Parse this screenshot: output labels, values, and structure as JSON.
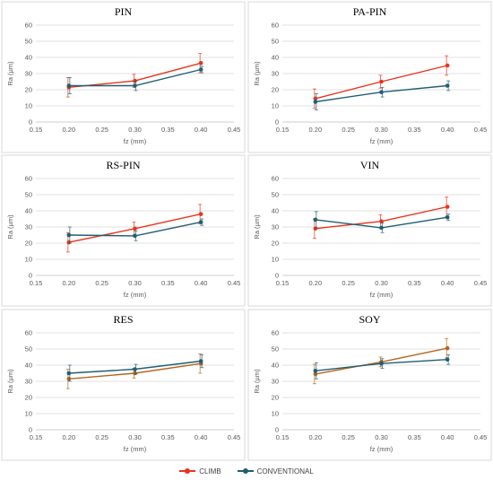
{
  "legend": {
    "climb_label": "CLIMB",
    "conventional_label": "CONVENTIONAL"
  },
  "colors": {
    "climb": "#e8341c",
    "conventional": "#1f5f73",
    "climb_res_soy": "#b5651d"
  },
  "chart_data": [
    {
      "type": "line",
      "title": "PIN",
      "xlabel": "fz (mm)",
      "ylabel": "Ra (µm)",
      "xlim": [
        0.15,
        0.45
      ],
      "ylim": [
        0,
        60
      ],
      "x_ticks": [
        "0.15",
        "0.20",
        "0.25",
        "0.30",
        "0.35",
        "0.40",
        "0.45"
      ],
      "y_ticks": [
        "0",
        "10",
        "20",
        "30",
        "40",
        "50",
        "60"
      ],
      "grid": true,
      "series": [
        {
          "name": "CLIMB",
          "x": [
            0.2,
            0.3,
            0.4
          ],
          "y": [
            21.5,
            25.5,
            36.5
          ],
          "err": [
            6,
            4,
            6
          ]
        },
        {
          "name": "CONVENTIONAL",
          "x": [
            0.2,
            0.3,
            0.4
          ],
          "y": [
            22.5,
            22.5,
            32.5
          ],
          "err": [
            5,
            3,
            2
          ]
        }
      ]
    },
    {
      "type": "line",
      "title": "PA-PIN",
      "xlabel": "fz (mm)",
      "ylabel": "Ra (µm)",
      "xlim": [
        0.15,
        0.45
      ],
      "ylim": [
        0,
        60
      ],
      "x_ticks": [
        "0.15",
        "0.20",
        "0.25",
        "0.30",
        "0.35",
        "0.40",
        "0.45"
      ],
      "y_ticks": [
        "0",
        "10",
        "20",
        "30",
        "40",
        "50",
        "60"
      ],
      "grid": true,
      "series": [
        {
          "name": "CLIMB",
          "x": [
            0.2,
            0.3,
            0.4
          ],
          "y": [
            14.5,
            25,
            35
          ],
          "err": [
            6,
            4,
            6
          ]
        },
        {
          "name": "CONVENTIONAL",
          "x": [
            0.2,
            0.3,
            0.4
          ],
          "y": [
            12.5,
            18.5,
            22.5
          ],
          "err": [
            5,
            3,
            3
          ]
        }
      ]
    },
    {
      "type": "line",
      "title": "RS-PIN",
      "xlabel": "fz (mm)",
      "ylabel": "Ra (µm)",
      "xlim": [
        0.15,
        0.45
      ],
      "ylim": [
        0,
        60
      ],
      "x_ticks": [
        "0.15",
        "0.20",
        "0.25",
        "0.30",
        "0.35",
        "0.40",
        "0.45"
      ],
      "y_ticks": [
        "0",
        "10",
        "20",
        "30",
        "40",
        "50",
        "60"
      ],
      "grid": true,
      "series": [
        {
          "name": "CLIMB",
          "x": [
            0.2,
            0.3,
            0.4
          ],
          "y": [
            20.5,
            29,
            38
          ],
          "err": [
            6,
            4,
            6
          ]
        },
        {
          "name": "CONVENTIONAL",
          "x": [
            0.2,
            0.3,
            0.4
          ],
          "y": [
            25,
            24.5,
            33
          ],
          "err": [
            5,
            3,
            2
          ]
        }
      ]
    },
    {
      "type": "line",
      "title": "VIN",
      "xlabel": "fz (mm)",
      "ylabel": "Ra (µm)",
      "xlim": [
        0.15,
        0.45
      ],
      "ylim": [
        0,
        60
      ],
      "x_ticks": [
        "0.15",
        "0.20",
        "0.25",
        "0.30",
        "0.35",
        "0.40",
        "0.45"
      ],
      "y_ticks": [
        "0",
        "10",
        "20",
        "30",
        "40",
        "50",
        "60"
      ],
      "grid": true,
      "series": [
        {
          "name": "CLIMB",
          "x": [
            0.2,
            0.3,
            0.4
          ],
          "y": [
            29,
            33.5,
            42.5
          ],
          "err": [
            6,
            4,
            6
          ]
        },
        {
          "name": "CONVENTIONAL",
          "x": [
            0.2,
            0.3,
            0.4
          ],
          "y": [
            34.5,
            29.5,
            36
          ],
          "err": [
            5,
            3,
            2
          ]
        }
      ]
    },
    {
      "type": "line",
      "title": "RES",
      "xlabel": "fz (mm)",
      "ylabel": "Ra (µm)",
      "xlim": [
        0.15,
        0.45
      ],
      "ylim": [
        0,
        60
      ],
      "x_ticks": [
        "0.15",
        "0.20",
        "0.25",
        "0.30",
        "0.35",
        "0.40",
        "0.45"
      ],
      "y_ticks": [
        "0",
        "10",
        "20",
        "30",
        "40",
        "50",
        "60"
      ],
      "grid": true,
      "series": [
        {
          "name": "CLIMB",
          "x": [
            0.2,
            0.3,
            0.4
          ],
          "y": [
            31.5,
            35,
            41
          ],
          "err": [
            6,
            3,
            6
          ]
        },
        {
          "name": "CONVENTIONAL",
          "x": [
            0.2,
            0.3,
            0.4
          ],
          "y": [
            35,
            37.5,
            42.5
          ],
          "err": [
            5,
            3,
            4
          ]
        }
      ]
    },
    {
      "type": "line",
      "title": "SOY",
      "xlabel": "fz (mm)",
      "ylabel": "Ra (µm)",
      "xlim": [
        0.15,
        0.45
      ],
      "ylim": [
        0,
        60
      ],
      "x_ticks": [
        "0.15",
        "0.20",
        "0.25",
        "0.30",
        "0.35",
        "0.40",
        "0.45"
      ],
      "y_ticks": [
        "0",
        "10",
        "20",
        "30",
        "40",
        "50",
        "60"
      ],
      "grid": true,
      "series": [
        {
          "name": "CLIMB",
          "x": [
            0.2,
            0.3,
            0.4
          ],
          "y": [
            34.5,
            42,
            50.5
          ],
          "err": [
            6,
            3,
            6
          ]
        },
        {
          "name": "CONVENTIONAL",
          "x": [
            0.2,
            0.3,
            0.4
          ],
          "y": [
            36.5,
            41,
            43.5
          ],
          "err": [
            5,
            3,
            3
          ]
        }
      ]
    }
  ]
}
